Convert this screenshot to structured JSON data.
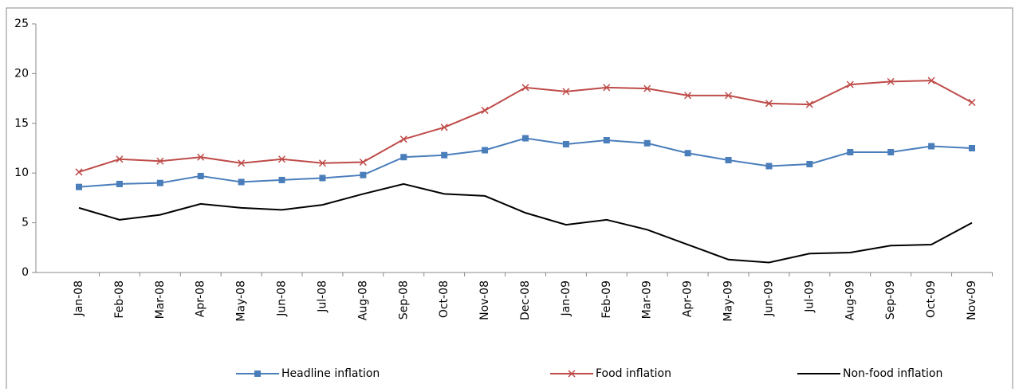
{
  "chart_data": {
    "type": "line",
    "categories": [
      "Jan-08",
      "Feb-08",
      "Mar-08",
      "Apr-08",
      "May-08",
      "Jun-08",
      "Jul-08",
      "Aug-08",
      "Sep-08",
      "Oct-08",
      "Nov-08",
      "Dec-08",
      "Jan-09",
      "Feb-09",
      "Mar-09",
      "Apr-09",
      "May-09",
      "Jun-09",
      "Jul-09",
      "Aug-09",
      "Sep-09",
      "Oct-09",
      "Nov-09"
    ],
    "series": [
      {
        "name": "Headline inflation",
        "color": "#4a7ebb",
        "marker": "square",
        "values": [
          8.6,
          8.9,
          9.0,
          9.7,
          9.1,
          9.3,
          9.5,
          9.8,
          11.6,
          11.8,
          12.3,
          13.5,
          12.9,
          13.3,
          13.0,
          12.0,
          11.3,
          10.7,
          10.9,
          12.1,
          12.1,
          12.7,
          12.5
        ]
      },
      {
        "name": "Food inflation",
        "color": "#be4b48",
        "marker": "x",
        "values": [
          10.1,
          11.4,
          11.2,
          11.6,
          11.0,
          11.4,
          11.0,
          11.1,
          13.4,
          14.6,
          16.3,
          18.6,
          18.2,
          18.6,
          18.5,
          17.8,
          17.8,
          17.0,
          16.9,
          18.9,
          19.2,
          19.3,
          17.1
        ]
      },
      {
        "name": "Non-food inflation",
        "color": "#000000",
        "marker": "none",
        "values": [
          6.5,
          5.3,
          5.8,
          6.9,
          6.5,
          6.3,
          6.8,
          7.9,
          8.9,
          7.9,
          7.7,
          6.0,
          4.8,
          5.3,
          4.3,
          2.8,
          1.3,
          1.0,
          1.9,
          2.0,
          2.7,
          2.8,
          5.0
        ]
      }
    ],
    "ylim": [
      0,
      25
    ],
    "yticks": [
      0,
      5,
      10,
      15,
      20,
      25
    ],
    "grid": false,
    "legend": "bottom"
  }
}
